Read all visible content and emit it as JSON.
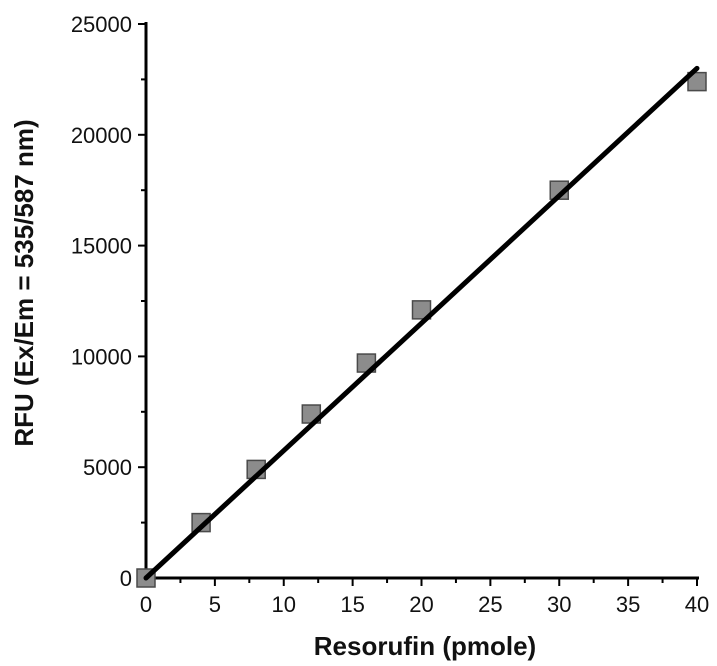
{
  "chart_data": {
    "type": "scatter",
    "title": "",
    "xlabel": "Resorufin (pmole)",
    "ylabel": "RFU (Ex/Em = 535/587 nm)",
    "xlim": [
      0,
      40
    ],
    "ylim": [
      0,
      25000
    ],
    "x_ticks": [
      0,
      5,
      10,
      15,
      20,
      25,
      30,
      35,
      40
    ],
    "y_ticks": [
      0,
      5000,
      10000,
      15000,
      20000,
      25000
    ],
    "grid": false,
    "legend": "none",
    "series": [
      {
        "x": [
          0,
          4,
          8,
          12,
          16,
          20,
          30,
          40
        ],
        "y": [
          0,
          2500,
          4900,
          7400,
          9700,
          12100,
          17500,
          22400
        ],
        "marker": "square",
        "marker_color": "#8c8c8c"
      }
    ],
    "fit_line": {
      "x": [
        0,
        40
      ],
      "y": [
        0,
        23000
      ],
      "color": "#000000"
    }
  }
}
